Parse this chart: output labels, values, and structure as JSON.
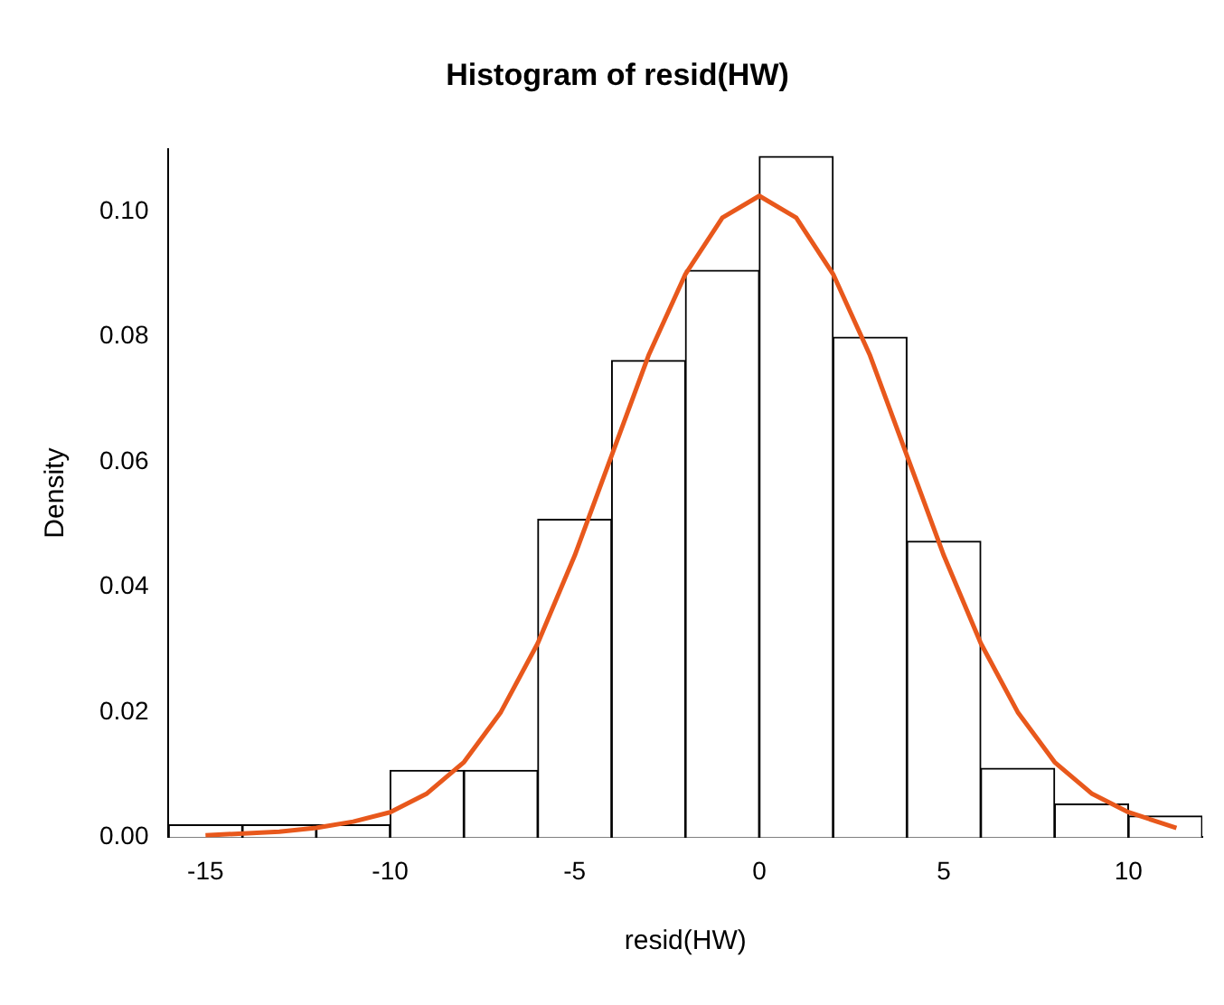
{
  "chart_data": {
    "type": "histogram",
    "title": "Histogram of resid(HW)",
    "xlabel": "resid(HW)",
    "ylabel": "Density",
    "bins": [
      -16,
      -14,
      -12,
      -10,
      -8,
      -6,
      -4,
      -2,
      0,
      2,
      4,
      6,
      8,
      10,
      12
    ],
    "values": [
      0.002,
      0.002,
      0.002,
      0.0107,
      0.0107,
      0.0508,
      0.0762,
      0.0906,
      0.1088,
      0.0799,
      0.0473,
      0.011,
      0.0053,
      0.0034
    ],
    "color": "#ffffff",
    "series": [
      {
        "type": "line",
        "color": "#e8581c",
        "x": [
          -15,
          -13,
          -12,
          -11,
          -10,
          -9,
          -8,
          -7,
          -6,
          -5,
          -4,
          -3,
          -2,
          -1,
          0,
          1,
          2,
          3,
          4,
          5,
          6,
          7,
          8,
          9,
          10,
          11.3
        ],
        "values": [
          0.0003,
          0.0009,
          0.0015,
          0.0025,
          0.004,
          0.007,
          0.012,
          0.02,
          0.031,
          0.045,
          0.061,
          0.077,
          0.09,
          0.099,
          0.1025,
          0.099,
          0.09,
          0.077,
          0.061,
          0.045,
          0.031,
          0.02,
          0.012,
          0.007,
          0.004,
          0.0015
        ]
      }
    ],
    "xlim": [
      -16,
      12
    ],
    "xticks": [
      -15,
      -10,
      -5,
      0,
      5,
      10
    ],
    "ylim": [
      0,
      0.11
    ],
    "yticks": [
      {
        "value": 0,
        "label": "0.00"
      },
      {
        "value": 0.02,
        "label": "0.02"
      },
      {
        "value": 0.04,
        "label": "0.04"
      },
      {
        "value": 0.06,
        "label": "0.06"
      },
      {
        "value": 0.08,
        "label": "0.08"
      },
      {
        "value": 0.1,
        "label": "0.10"
      }
    ],
    "grid": false,
    "legend": false
  }
}
